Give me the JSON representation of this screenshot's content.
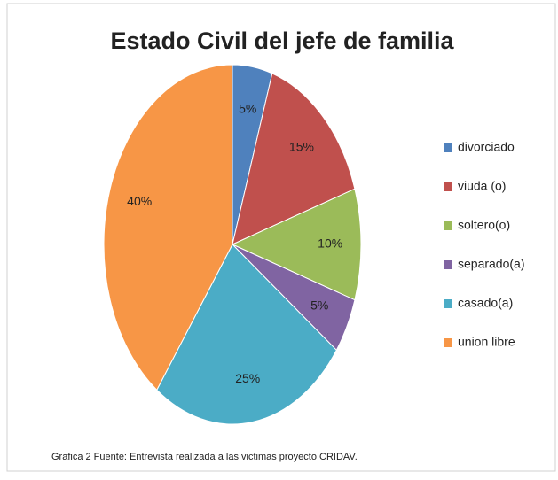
{
  "chart_data": {
    "type": "pie",
    "title": "Estado Civil del jefe de familia",
    "categories": [
      "divorciado",
      "viuda (o)",
      "soltero(o)",
      "separado(a)",
      "casado(a)",
      "union libre"
    ],
    "values": [
      5,
      15,
      10,
      5,
      25,
      40
    ],
    "value_labels": [
      "5%",
      "15%",
      "10%",
      "5%",
      "25%",
      "40%"
    ],
    "colors": [
      "#4f81bd",
      "#c0504d",
      "#9bbb59",
      "#8064a2",
      "#4bacc6",
      "#f79646"
    ],
    "legend": "right",
    "caption": "Grafica 2 Fuente:  Entrevista realizada a las victimas proyecto CRIDAV."
  }
}
